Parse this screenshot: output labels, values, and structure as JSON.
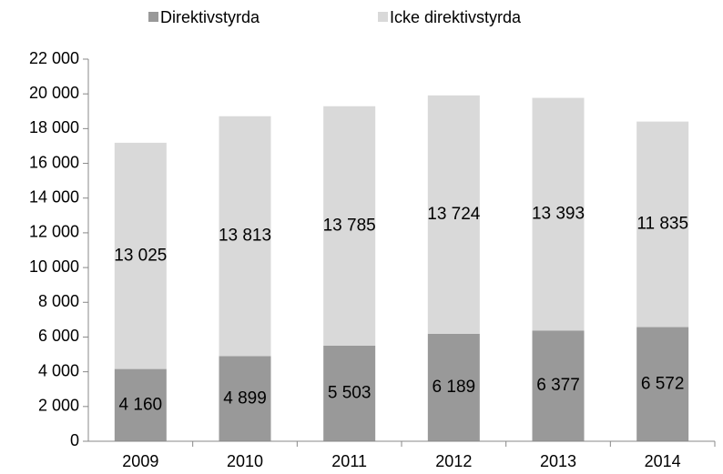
{
  "chart_data": {
    "type": "stacked_bar",
    "categories": [
      "2009",
      "2010",
      "2011",
      "2012",
      "2013",
      "2014"
    ],
    "series": [
      {
        "name": "Direktivstyrda",
        "color": "#999999",
        "values": [
          4160,
          4899,
          5503,
          6189,
          6377,
          6572
        ],
        "value_labels": [
          "4 160",
          "4 899",
          "5 503",
          "6 189",
          "6 377",
          "6 572"
        ]
      },
      {
        "name": "Icke direktivstyrda",
        "color": "#d9d9d9",
        "values": [
          13025,
          13813,
          13785,
          13724,
          13393,
          11835
        ],
        "value_labels": [
          "13 025",
          "13 813",
          "13 785",
          "13 724",
          "13 393",
          "11 835"
        ]
      }
    ],
    "ylim": [
      0,
      22000
    ],
    "yticks": [
      0,
      {
        "value": 2000,
        "label": "2 000"
      },
      {
        "value": 4000,
        "label": "4 000"
      },
      {
        "value": 6000,
        "label": "6 000"
      },
      {
        "value": 8000,
        "label": "8 000"
      },
      {
        "value": 10000,
        "label": "10 000"
      },
      {
        "value": 12000,
        "label": "12 000"
      },
      {
        "value": 14000,
        "label": "14 000"
      },
      {
        "value": 16000,
        "label": "16 000"
      },
      {
        "value": 18000,
        "label": "18 000"
      },
      {
        "value": 20000,
        "label": "20 000"
      },
      {
        "value": 22000,
        "label": "22 000"
      }
    ],
    "legend": "top"
  }
}
